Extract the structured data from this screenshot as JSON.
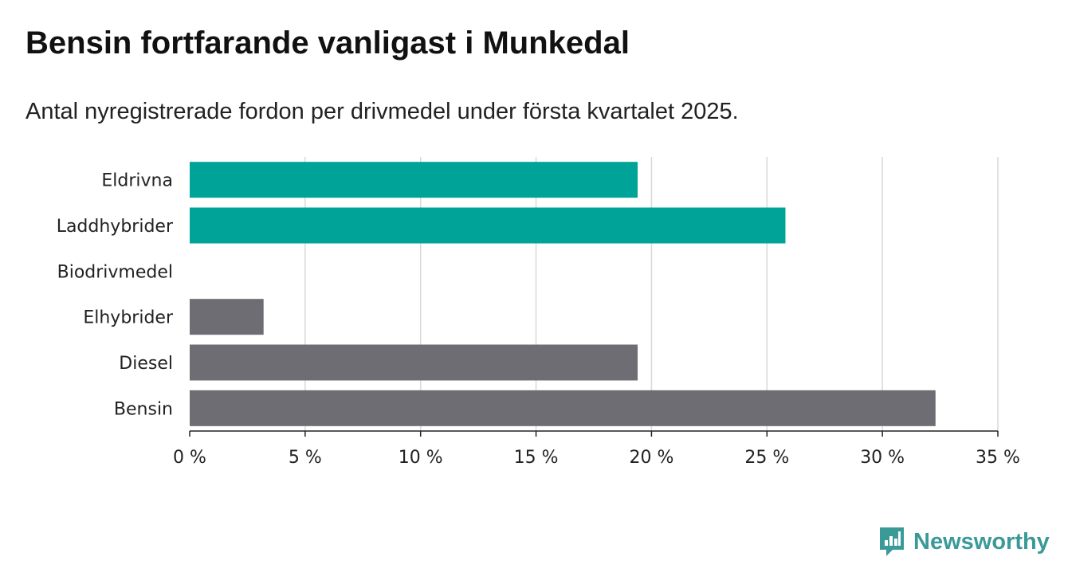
{
  "header": {
    "title": "Bensin fortfarande vanligast i Munkedal",
    "subtitle": "Antal nyregistrerade fordon per drivmedel under första kvartalet 2025."
  },
  "chart_data": {
    "type": "bar",
    "orientation": "horizontal",
    "categories": [
      "Eldrivna",
      "Laddhybrider",
      "Biodrivmedel",
      "Elhybrider",
      "Diesel",
      "Bensin"
    ],
    "values": [
      19.4,
      25.8,
      0,
      3.2,
      19.4,
      32.3
    ],
    "bar_colors": [
      "#00a398",
      "#00a398",
      "#00a398",
      "#6e6d73",
      "#6e6d73",
      "#6e6d73"
    ],
    "xlim": [
      0,
      35
    ],
    "x_ticks": [
      0,
      5,
      10,
      15,
      20,
      25,
      30,
      35
    ],
    "x_tick_labels": [
      "0 %",
      "5 %",
      "10 %",
      "15 %",
      "20 %",
      "25 %",
      "30 %",
      "35 %"
    ],
    "grid": true,
    "xlabel": "",
    "ylabel": ""
  },
  "brand": {
    "name": "Newsworthy",
    "color": "#3a9a98",
    "icon": "newsworthy-logo-icon"
  }
}
